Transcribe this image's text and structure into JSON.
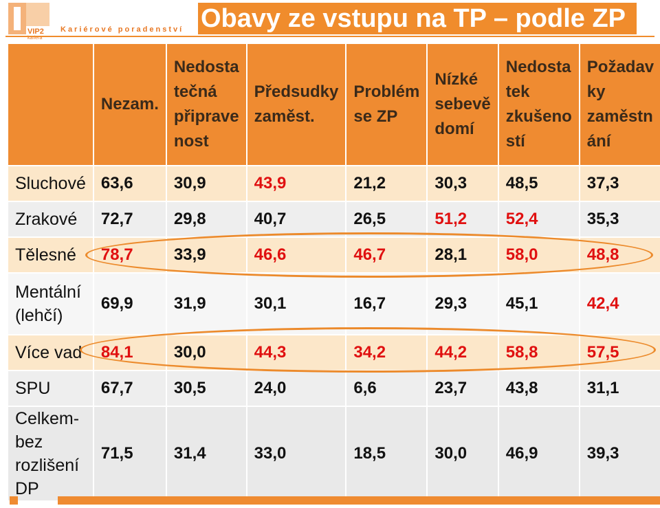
{
  "logo": {
    "brand": "VIP2",
    "sub": "kariera"
  },
  "tagline": "Kariérové poradenství",
  "title": "Obavy ze vstupu na TP – podle ZP",
  "colors": {
    "header_orange": "#ef8b31",
    "highlight_red": "#e01010",
    "ellipse": "#ec8a2b"
  },
  "table": {
    "headers": [
      "",
      "Nezam.",
      "Nedosta tečná připrave nost",
      "Předsudky zaměst.",
      "Problém se ZP",
      "Nízké sebevě domí",
      "Nedosta tek zkušeno stí",
      "Požadav ky zaměstn ání"
    ],
    "rows": [
      {
        "label": "Sluchové",
        "values": [
          "63,6",
          "30,9",
          "43,9",
          "21,2",
          "30,3",
          "48,5",
          "37,3"
        ]
      },
      {
        "label": "Zrakové",
        "values": [
          "72,7",
          "29,8",
          "40,7",
          "26,5",
          "51,2",
          "52,4",
          "35,3"
        ]
      },
      {
        "label": "Tělesné",
        "values": [
          "78,7",
          "33,9",
          "46,6",
          "46,7",
          "28,1",
          "58,0",
          "48,8"
        ]
      },
      {
        "label": "Mentální (lehčí)",
        "values": [
          "69,9",
          "31,9",
          "30,1",
          "16,7",
          "29,3",
          "45,1",
          "42,4"
        ]
      },
      {
        "label": "Více vad",
        "values": [
          "84,1",
          "30,0",
          "44,3",
          "34,2",
          "44,2",
          "58,8",
          "57,5"
        ]
      },
      {
        "label": "SPU",
        "values": [
          "67,7",
          "30,5",
          "24,0",
          "6,6",
          "23,7",
          "43,8",
          "31,1"
        ]
      },
      {
        "label": "Celkem-bez rozlišení DP",
        "values": [
          "71,5",
          "31,4",
          "33,0",
          "18,5",
          "30,0",
          "46,9",
          "39,3"
        ]
      }
    ]
  }
}
